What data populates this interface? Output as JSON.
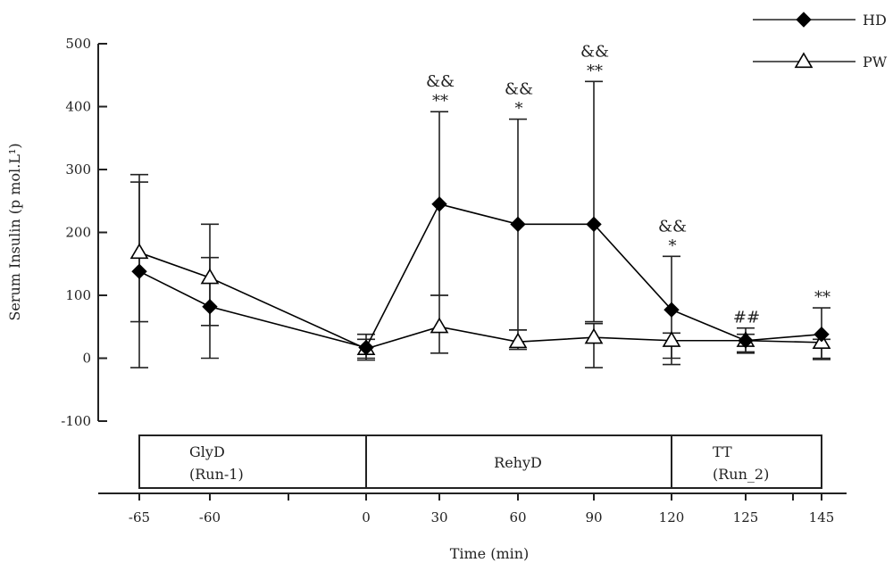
{
  "chart_data": {
    "type": "line",
    "ylabel": "Serum Insulin (p mol.L¹)",
    "xlabel": "Time (min)",
    "ylim": [
      -100,
      500
    ],
    "yticks": [
      "500",
      "400",
      "300",
      "200",
      "100",
      "0",
      "-100"
    ],
    "yticks_values": [
      500,
      400,
      300,
      200,
      100,
      0,
      -100
    ],
    "categories": [
      "-65",
      "-60",
      "0",
      "30",
      "60",
      "90",
      "120",
      "125",
      "145"
    ],
    "series": [
      {
        "name": "HD",
        "marker": "filled-diamond",
        "color": "#000000",
        "values": [
          138,
          82,
          17,
          245,
          213,
          213,
          77,
          28,
          38
        ],
        "upper": [
          280,
          160,
          38,
          392,
          380,
          440,
          162,
          48,
          80
        ],
        "lower": [
          -15,
          0,
          0,
          100,
          45,
          58,
          0,
          10,
          0
        ]
      },
      {
        "name": "PW",
        "marker": "open-triangle",
        "color": "#000000",
        "values": [
          168,
          128,
          15,
          50,
          26,
          33,
          28,
          28,
          25
        ],
        "upper": [
          292,
          213,
          30,
          100,
          45,
          55,
          40,
          38,
          30
        ],
        "lower": [
          58,
          52,
          -3,
          8,
          14,
          -15,
          -10,
          8,
          -2
        ]
      }
    ],
    "annotations": [
      {
        "x": "30",
        "labels": [
          "&&",
          "**"
        ]
      },
      {
        "x": "60",
        "labels": [
          "&&",
          "*"
        ]
      },
      {
        "x": "90",
        "labels": [
          "&&",
          "**"
        ]
      },
      {
        "x": "120",
        "labels": [
          "&&",
          "*"
        ]
      },
      {
        "x": "125",
        "labels": [
          "##"
        ]
      },
      {
        "x": "145",
        "labels": [
          "**"
        ]
      }
    ],
    "phases": [
      {
        "lines": [
          "GlyD",
          "(Run-1)"
        ]
      },
      {
        "lines": [
          "RehyD"
        ]
      },
      {
        "lines": [
          "TT",
          "(Run_2)"
        ]
      }
    ],
    "legend": {
      "position": "top-right"
    }
  }
}
